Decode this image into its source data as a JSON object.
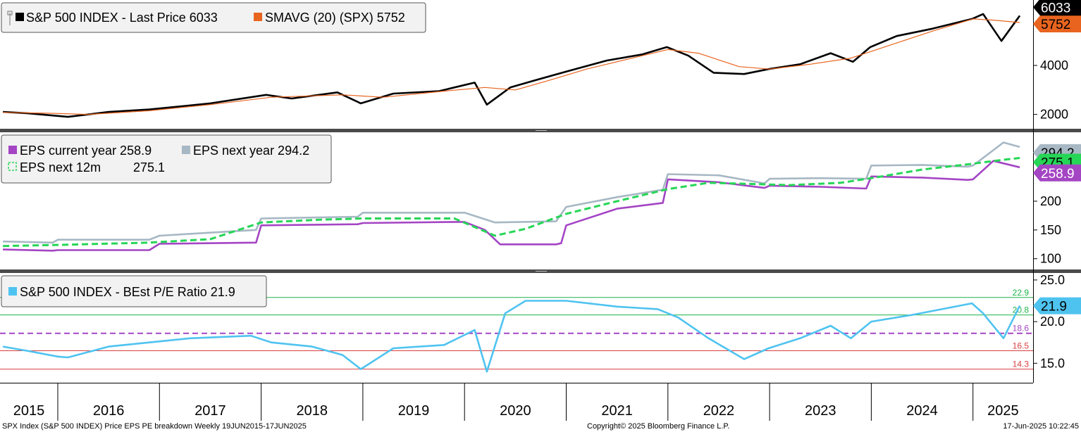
{
  "chart_data": [
    {
      "type": "line",
      "panel": "price",
      "ylim": [
        1500,
        6500
      ],
      "yticks": [
        2000,
        4000
      ],
      "series": [
        {
          "name": "S&P 500 INDEX - Last Price 6033",
          "color": "#000000",
          "last": 6033,
          "x": [
            2015.46,
            2015.7,
            2016.1,
            2016.5,
            2016.9,
            2017.5,
            2018.05,
            2018.3,
            2018.75,
            2018.98,
            2019.3,
            2019.75,
            2020.1,
            2020.22,
            2020.45,
            2020.7,
            2021.0,
            2021.4,
            2021.75,
            2021.99,
            2022.2,
            2022.45,
            2022.75,
            2022.99,
            2023.3,
            2023.6,
            2023.82,
            2023.99,
            2024.25,
            2024.6,
            2024.99,
            2025.1,
            2025.28,
            2025.46
          ],
          "y": [
            2100,
            2050,
            1900,
            2100,
            2200,
            2450,
            2800,
            2650,
            2900,
            2450,
            2850,
            2950,
            3300,
            2400,
            3100,
            3400,
            3750,
            4200,
            4450,
            4750,
            4400,
            3700,
            3650,
            3850,
            4050,
            4500,
            4150,
            4750,
            5200,
            5500,
            5900,
            6100,
            5000,
            6033
          ]
        },
        {
          "name": "SMAVG (20) (SPX) 5752",
          "color": "#e8641f",
          "last": 5752,
          "x": [
            2015.46,
            2015.9,
            2016.3,
            2016.9,
            2017.5,
            2018.1,
            2018.8,
            2019.2,
            2019.8,
            2020.2,
            2020.5,
            2020.8,
            2021.2,
            2021.7,
            2022.0,
            2022.3,
            2022.7,
            2023.0,
            2023.4,
            2023.8,
            2024.2,
            2024.6,
            2025.0,
            2025.2,
            2025.46
          ],
          "y": [
            2080,
            2050,
            2000,
            2150,
            2400,
            2700,
            2800,
            2700,
            2950,
            3100,
            3000,
            3350,
            3850,
            4350,
            4650,
            4500,
            3950,
            3850,
            4050,
            4300,
            4850,
            5400,
            5900,
            5850,
            5752
          ]
        }
      ]
    },
    {
      "type": "line",
      "panel": "eps",
      "ylim": [
        85,
        310
      ],
      "yticks": [
        100,
        150,
        200
      ],
      "series": [
        {
          "name": "EPS current year 258.9",
          "color": "#a445c4",
          "last": 258.9,
          "x": [
            2015.46,
            2015.95,
            2016.0,
            2016.9,
            2017.0,
            2017.95,
            2018.0,
            2018.95,
            2019.0,
            2019.95,
            2020.0,
            2020.2,
            2020.35,
            2020.9,
            2020.95,
            2021.0,
            2021.5,
            2021.95,
            2022.0,
            2022.5,
            2022.95,
            2023.0,
            2023.5,
            2023.95,
            2024.0,
            2024.5,
            2024.95,
            2025.0,
            2025.2,
            2025.46
          ],
          "y": [
            116,
            114,
            115,
            115,
            126,
            128,
            158,
            160,
            162,
            164,
            164,
            150,
            125,
            125,
            127,
            158,
            187,
            197,
            238,
            233,
            223,
            227,
            225,
            222,
            243,
            241,
            237,
            238,
            270,
            258.9
          ]
        },
        {
          "name": "EPS next year 294.2",
          "color": "#a7b8c4",
          "last": 294.2,
          "x": [
            2015.46,
            2015.95,
            2016.0,
            2016.9,
            2017.0,
            2017.95,
            2018.0,
            2018.95,
            2019.0,
            2019.95,
            2020.0,
            2020.3,
            2020.9,
            2021.0,
            2021.5,
            2021.95,
            2022.0,
            2022.5,
            2022.95,
            2023.0,
            2023.5,
            2023.95,
            2024.0,
            2024.5,
            2024.95,
            2025.0,
            2025.3,
            2025.46
          ],
          "y": [
            130,
            128,
            133,
            133,
            140,
            150,
            170,
            173,
            180,
            180,
            180,
            163,
            165,
            190,
            207,
            220,
            247,
            245,
            231,
            239,
            240,
            239,
            262,
            263,
            260,
            262,
            302,
            294.2
          ]
        },
        {
          "name": "EPS next 12m 275.1",
          "color": "#26d656",
          "dash": true,
          "last": 275.1,
          "x": [
            2015.46,
            2016.0,
            2016.9,
            2017.5,
            2018.0,
            2018.6,
            2019.0,
            2019.9,
            2020.3,
            2020.6,
            2021.0,
            2021.5,
            2022.0,
            2022.4,
            2022.8,
            2023.2,
            2023.7,
            2024.0,
            2024.5,
            2024.99,
            2025.3,
            2025.46
          ],
          "y": [
            122,
            124,
            128,
            134,
            163,
            168,
            170,
            170,
            140,
            152,
            178,
            200,
            221,
            232,
            230,
            228,
            232,
            240,
            255,
            265,
            272,
            275.1
          ]
        }
      ]
    },
    {
      "type": "line",
      "panel": "pe",
      "ylim": [
        13.0,
        25.5
      ],
      "yticks": [
        15.0,
        20.0,
        25.0
      ],
      "levels": [
        {
          "value": 22.9,
          "label": "22.9",
          "color": "#1db34a",
          "dash": false
        },
        {
          "value": 20.8,
          "label": "20.8",
          "color": "#1db34a",
          "dash": false
        },
        {
          "value": 18.6,
          "label": "18.6",
          "color": "#a445c4",
          "dash": true
        },
        {
          "value": 16.5,
          "label": "16.5",
          "color": "#d94040",
          "dash": false
        },
        {
          "value": 14.3,
          "label": "14.3",
          "color": "#d94040",
          "dash": false
        }
      ],
      "series": [
        {
          "name": "S&P 500 INDEX - BEst P/E Ratio 21.9",
          "color": "#4fc3f0",
          "last": 21.9,
          "x": [
            2015.46,
            2015.7,
            2016.0,
            2016.1,
            2016.5,
            2016.9,
            2017.3,
            2017.9,
            2018.1,
            2018.5,
            2018.8,
            2018.98,
            2019.3,
            2019.8,
            2020.1,
            2020.22,
            2020.4,
            2020.6,
            2021.0,
            2021.5,
            2021.9,
            2022.1,
            2022.4,
            2022.75,
            2022.99,
            2023.3,
            2023.6,
            2023.8,
            2024.0,
            2024.4,
            2024.99,
            2025.1,
            2025.3,
            2025.46
          ],
          "y": [
            17.0,
            16.5,
            15.8,
            15.7,
            17.0,
            17.5,
            18.0,
            18.3,
            17.5,
            17.0,
            16.0,
            14.3,
            16.8,
            17.2,
            19.0,
            14.0,
            21.0,
            22.5,
            22.5,
            21.8,
            21.5,
            20.5,
            18.0,
            15.5,
            16.8,
            18.0,
            19.5,
            18.0,
            20.0,
            20.8,
            22.2,
            21.0,
            18.0,
            21.9
          ]
        }
      ]
    }
  ],
  "x_axis": {
    "years": [
      "2015",
      "2016",
      "2017",
      "2018",
      "2019",
      "2020",
      "2021",
      "2022",
      "2023",
      "2024",
      "2025"
    ]
  },
  "badges": {
    "price_last": "6033",
    "price_sma": "5752",
    "eps_next_year": "294.2",
    "eps_next_12m": "275.1",
    "eps_current": "258.9",
    "pe_last": "21.9"
  },
  "legends": {
    "price": [
      {
        "label": "S&P 500 INDEX - Last Price 6033",
        "color": "#000000"
      },
      {
        "label": "SMAVG (20) (SPX) 5752",
        "color": "#e8641f"
      }
    ],
    "eps": [
      {
        "label": "EPS current year 258.9",
        "color": "#a445c4"
      },
      {
        "label": "EPS next year 294.2",
        "color": "#a7b8c4"
      },
      {
        "label": "EPS next 12m",
        "value": "275.1",
        "color": "#26d656"
      }
    ],
    "pe": [
      {
        "label": "S&P 500 INDEX - BEst P/E Ratio 21.9",
        "color": "#4fc3f0"
      }
    ]
  },
  "footer": {
    "left": "SPX Index (S&P 500 INDEX) Price EPS PE breakdown  Weekly 19JUN2015-17JUN2025",
    "center": "Copyright© 2025 Bloomberg Finance L.P.",
    "right": "17-Jun-2025 10:22:45"
  }
}
